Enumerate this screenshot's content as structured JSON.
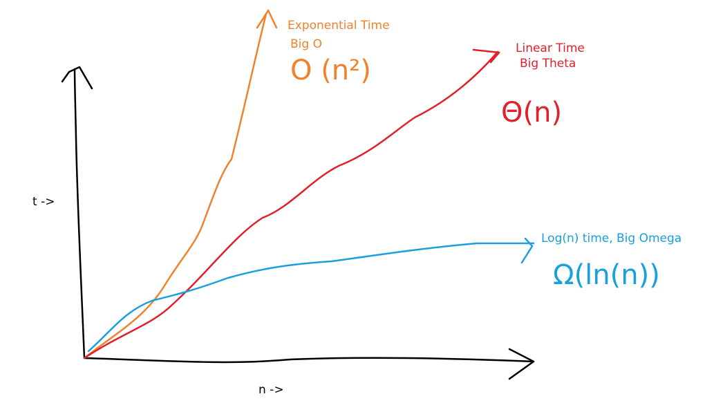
{
  "curves": [
    {
      "label": "Exponential Time",
      "sublabel": "Big O",
      "notation": "O (n²)"
    },
    {
      "label": "Linear Time",
      "sublabel": "Big Theta",
      "notation": "Θ(n)"
    },
    {
      "label": "Log(n) time, Big Omega",
      "notation": "Ω(ln(n))"
    }
  ],
  "axes": {
    "y_label": "t ->",
    "x_label": "n ->"
  }
}
